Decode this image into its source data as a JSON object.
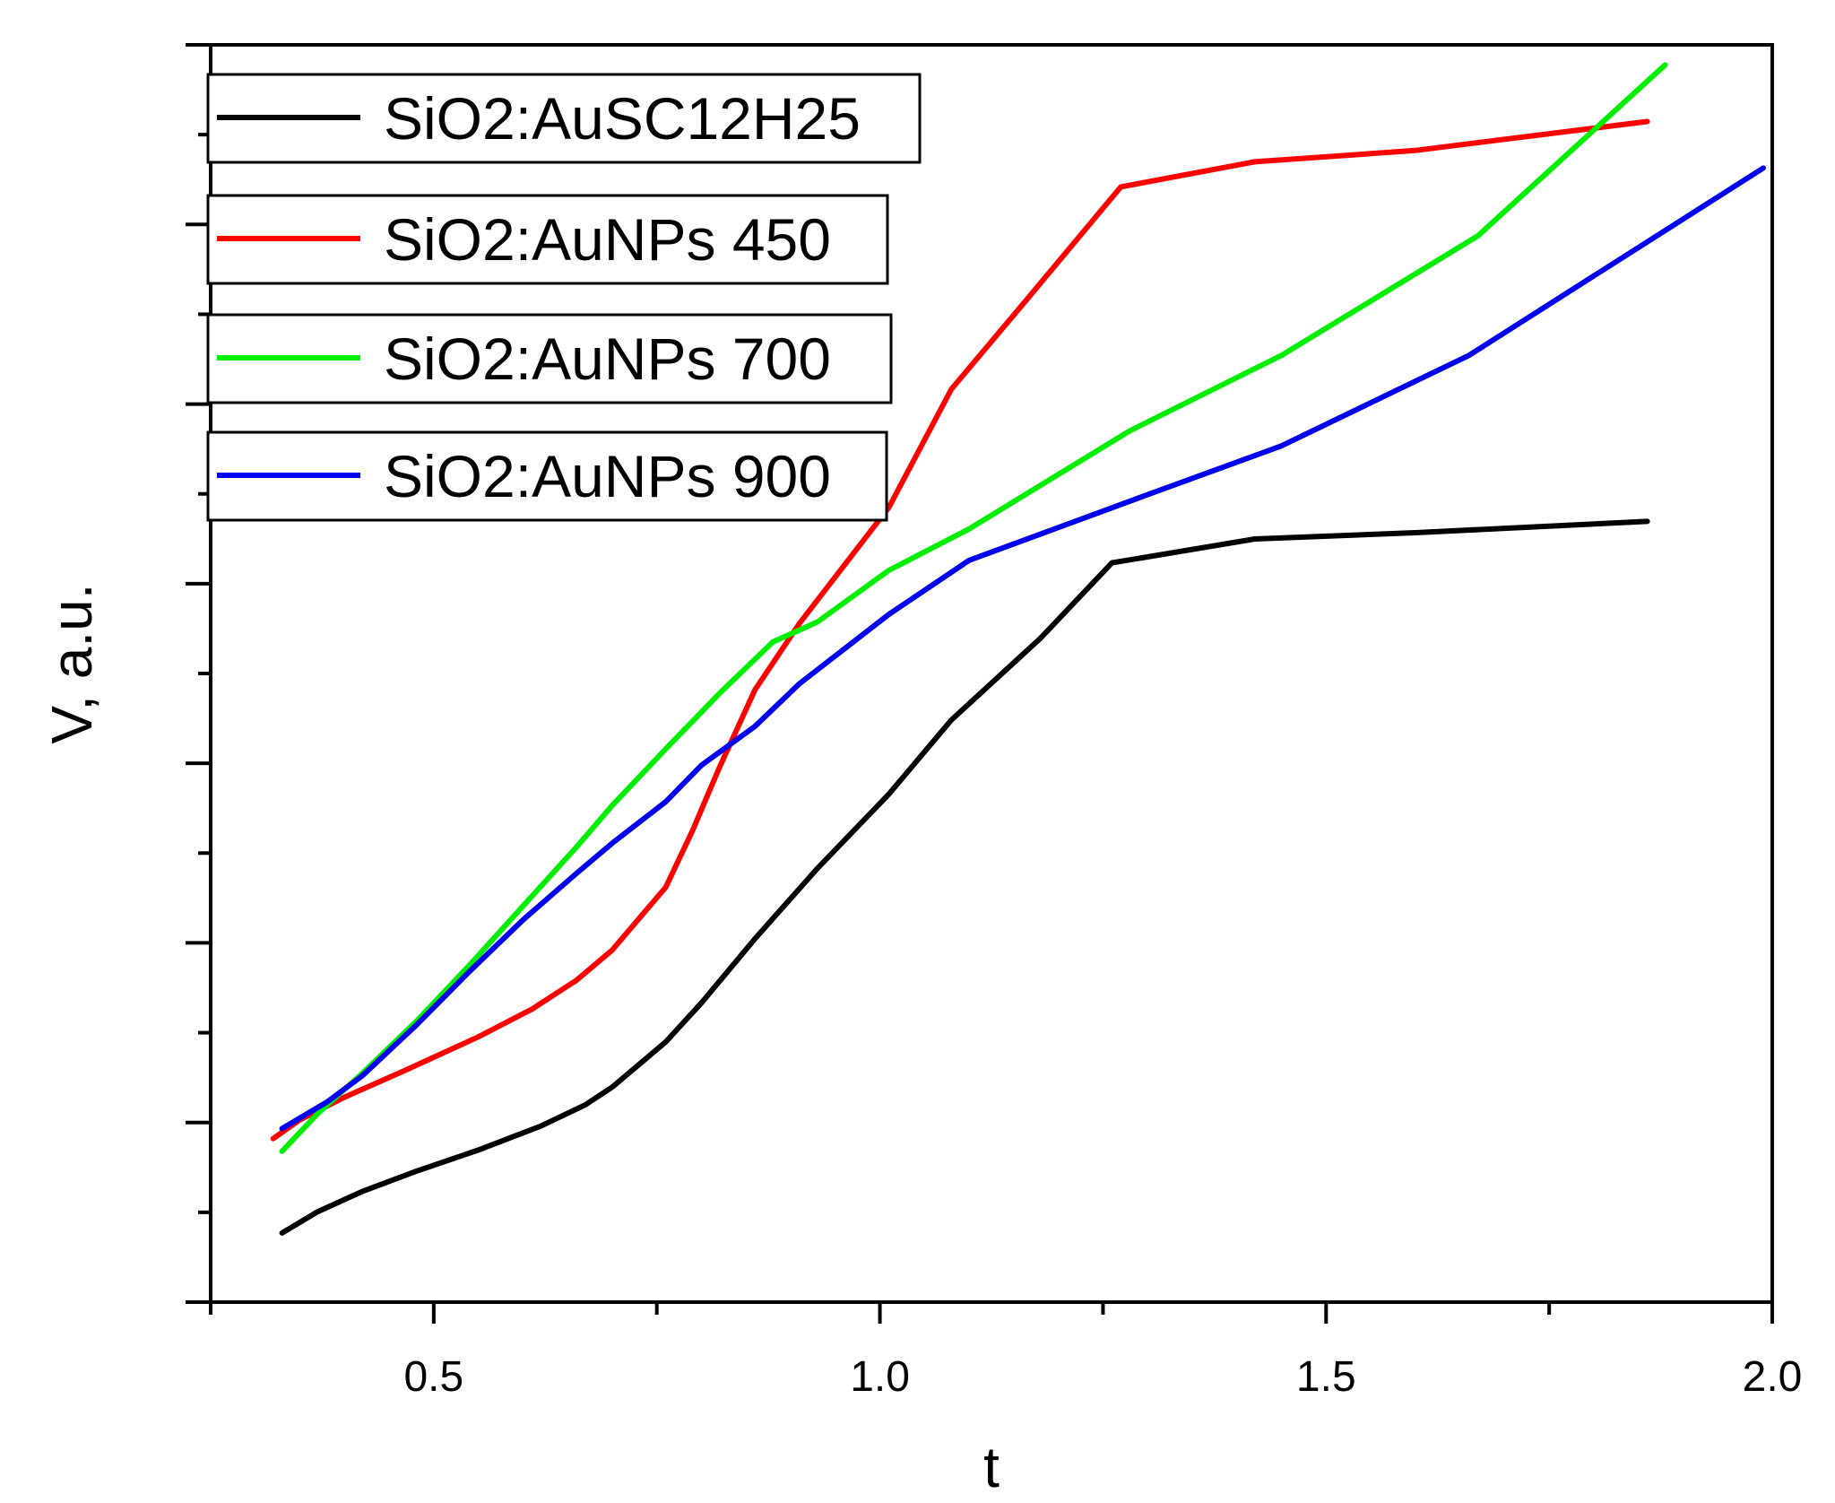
{
  "chart_data": {
    "type": "line",
    "title": "",
    "xlabel": "t",
    "ylabel": "V, a.u.",
    "xlim": [
      0.25,
      2.0
    ],
    "ylim": [
      0,
      1
    ],
    "x_ticks": [
      "0.5",
      "1.0",
      "1.5",
      "2.0"
    ],
    "y_ticks": [],
    "grid": false,
    "legend": "top-left",
    "series": [
      {
        "name": "SiO2:AuSC12H25",
        "color": "#000000",
        "x": [
          0.33,
          0.37,
          0.42,
          0.48,
          0.55,
          0.62,
          0.67,
          0.7,
          0.76,
          0.8,
          0.86,
          0.93,
          1.01,
          1.08,
          1.18,
          1.26,
          1.42,
          1.6,
          1.86
        ],
        "y": [
          0.055,
          0.072,
          0.088,
          0.104,
          0.121,
          0.14,
          0.157,
          0.171,
          0.207,
          0.238,
          0.289,
          0.345,
          0.404,
          0.463,
          0.528,
          0.588,
          0.607,
          0.612,
          0.621
        ]
      },
      {
        "name": "SiO2:AuNPs 450",
        "color": "#ff0000",
        "x": [
          0.32,
          0.35,
          0.4,
          0.47,
          0.55,
          0.61,
          0.66,
          0.7,
          0.76,
          0.79,
          0.82,
          0.86,
          0.91,
          1.01,
          1.08,
          1.17,
          1.27,
          1.42,
          1.6,
          1.86
        ],
        "y": [
          0.13,
          0.145,
          0.163,
          0.185,
          0.211,
          0.233,
          0.256,
          0.28,
          0.33,
          0.375,
          0.425,
          0.487,
          0.54,
          0.632,
          0.726,
          0.802,
          0.887,
          0.907,
          0.916,
          0.939
        ]
      },
      {
        "name": "SiO2:AuNPs 700",
        "color": "#00ee00",
        "x": [
          0.33,
          0.37,
          0.42,
          0.48,
          0.54,
          0.6,
          0.66,
          0.7,
          0.76,
          0.82,
          0.88,
          0.93,
          1.01,
          1.1,
          1.28,
          1.45,
          1.67,
          1.88
        ],
        "y": [
          0.12,
          0.15,
          0.182,
          0.223,
          0.268,
          0.315,
          0.362,
          0.395,
          0.44,
          0.484,
          0.525,
          0.541,
          0.582,
          0.615,
          0.693,
          0.753,
          0.848,
          0.984
        ]
      },
      {
        "name": "SiO2:AuNPs 900",
        "color": "#0000ee",
        "x": [
          0.33,
          0.38,
          0.42,
          0.48,
          0.54,
          0.6,
          0.66,
          0.7,
          0.76,
          0.8,
          0.86,
          0.91,
          1.01,
          1.1,
          1.28,
          1.45,
          1.66,
          1.99
        ],
        "y": [
          0.138,
          0.159,
          0.18,
          0.22,
          0.263,
          0.304,
          0.341,
          0.365,
          0.398,
          0.427,
          0.458,
          0.492,
          0.547,
          0.59,
          0.637,
          0.681,
          0.753,
          0.902
        ]
      }
    ]
  }
}
